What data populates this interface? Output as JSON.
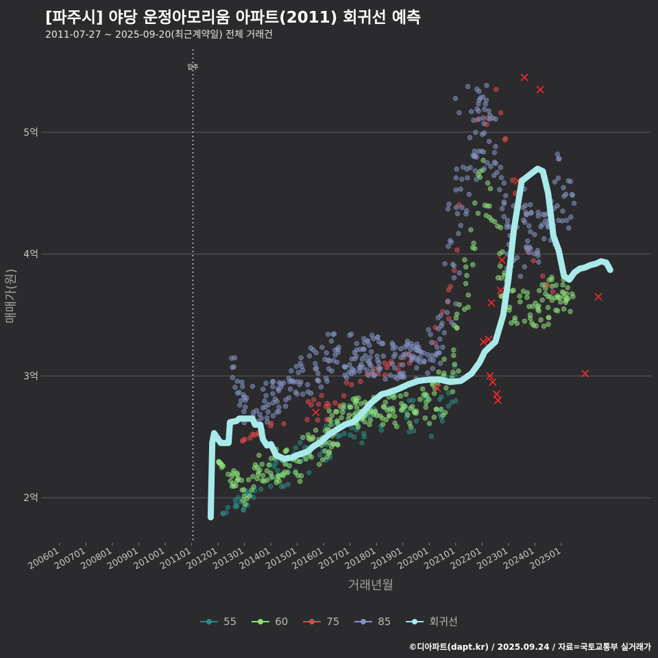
{
  "header": {
    "title": "[파주시] 야당 운정아모리움 아파트(2011) 회귀선 예측",
    "subtitle": "2011-07-27 ~ 2025-09-20(최근계약일) 전체 거래건"
  },
  "footer": {
    "credit": "©디아파트(dapt.kr) / 2025.09.24 / 자료=국토교통부 실거래가"
  },
  "colors": {
    "background": "#2b2b2d",
    "grid": "#5c5c5e",
    "s55": "#2a8a84",
    "s60": "#8ee07a",
    "s75": "#e0484e",
    "s85": "#8494c2",
    "regression": "#a8eaea",
    "cancel": "#ff2a2a"
  },
  "chart_data": {
    "type": "scatter",
    "title": "[파주시] 야당 운정아모리움 아파트(2011) 회귀선 예측",
    "xlabel": "거래년월",
    "ylabel": "매매가(원)",
    "x_tick_labels": [
      "200601",
      "200701",
      "200801",
      "200901",
      "201001",
      "201101",
      "201201",
      "201301",
      "201401",
      "201501",
      "201601",
      "201701",
      "201801",
      "201901",
      "202001",
      "202101",
      "202201",
      "202301",
      "202401",
      "202501"
    ],
    "x_range": [
      2005.3,
      2028.4
    ],
    "y_ticks": [
      2,
      3,
      4,
      5
    ],
    "y_tick_labels": [
      "2억",
      "3억",
      "4억",
      "5억"
    ],
    "y_range": [
      1.63,
      5.68
    ],
    "y_unit": "억원",
    "annotation": {
      "label": "입주",
      "x": 2011.05
    },
    "legend": [
      "55",
      "60",
      "75",
      "85",
      "회귀선"
    ],
    "series": [
      {
        "name": "55",
        "band": [
          [
            2012.0,
            1.85,
            1.85
          ],
          [
            2013.0,
            1.9,
            2.05
          ],
          [
            2013.5,
            1.95,
            2.1
          ],
          [
            2014.0,
            2.0,
            2.3
          ],
          [
            2014.5,
            2.05,
            2.35
          ],
          [
            2015.0,
            2.1,
            2.45
          ],
          [
            2015.5,
            2.2,
            2.55
          ],
          [
            2016.0,
            2.3,
            2.65
          ],
          [
            2016.5,
            2.35,
            2.75
          ],
          [
            2017.0,
            2.4,
            2.8
          ],
          [
            2017.5,
            2.45,
            2.8
          ],
          [
            2018.0,
            2.5,
            2.85
          ],
          [
            2018.5,
            2.5,
            2.85
          ],
          [
            2019.0,
            2.5,
            2.85
          ],
          [
            2019.5,
            2.45,
            2.8
          ],
          [
            2020.0,
            2.45,
            2.85
          ],
          [
            2020.5,
            2.6,
            3.0
          ],
          [
            2021.0,
            2.7,
            3.15
          ]
        ]
      },
      {
        "name": "60",
        "band": [
          [
            2012.0,
            2.3,
            2.3
          ],
          [
            2013.0,
            1.9,
            2.2
          ],
          [
            2013.5,
            2.1,
            2.35
          ],
          [
            2014.0,
            2.1,
            2.4
          ],
          [
            2014.5,
            2.15,
            2.4
          ],
          [
            2015.0,
            2.1,
            2.5
          ],
          [
            2015.5,
            2.2,
            2.6
          ],
          [
            2016.0,
            2.3,
            2.7
          ],
          [
            2016.5,
            2.4,
            2.75
          ],
          [
            2017.0,
            2.55,
            2.8
          ],
          [
            2017.5,
            2.6,
            2.85
          ],
          [
            2018.0,
            2.6,
            2.85
          ],
          [
            2018.5,
            2.6,
            2.85
          ],
          [
            2019.0,
            2.55,
            2.85
          ],
          [
            2019.5,
            2.6,
            2.85
          ],
          [
            2020.0,
            2.6,
            2.95
          ],
          [
            2020.5,
            2.65,
            3.1
          ],
          [
            2021.0,
            2.85,
            3.5
          ],
          [
            2021.5,
            3.6,
            4.3
          ],
          [
            2022.0,
            4.5,
            4.8
          ],
          [
            2022.5,
            3.8,
            4.5
          ],
          [
            2023.0,
            3.4,
            3.8
          ],
          [
            2023.5,
            3.4,
            3.7
          ],
          [
            2024.0,
            3.4,
            3.7
          ],
          [
            2024.5,
            3.4,
            3.8
          ],
          [
            2025.0,
            3.55,
            3.85
          ],
          [
            2025.5,
            3.5,
            3.7
          ]
        ]
      },
      {
        "name": "75",
        "band": [
          [
            2012.8,
            2.45,
            2.45
          ],
          [
            2014.5,
            2.6,
            2.7
          ],
          [
            2015.0,
            2.65,
            2.75
          ],
          [
            2016.0,
            2.6,
            2.85
          ],
          [
            2016.5,
            2.6,
            2.9
          ],
          [
            2017.0,
            2.9,
            3.0
          ],
          [
            2018.0,
            3.0,
            3.1
          ],
          [
            2019.0,
            3.0,
            3.15
          ],
          [
            2020.0,
            3.2,
            3.3
          ],
          [
            2020.5,
            3.3,
            3.7
          ],
          [
            2021.0,
            3.6,
            4.1
          ],
          [
            2021.3,
            4.6,
            5.1
          ],
          [
            2022.0,
            4.9,
            5.45
          ],
          [
            2022.5,
            5.3,
            5.4
          ],
          [
            2023.7,
            4.0,
            4.05
          ],
          [
            2024.7,
            3.6,
            3.7
          ]
        ]
      },
      {
        "name": "85",
        "band": [
          [
            2012.5,
            3.0,
            3.25
          ],
          [
            2013.0,
            2.6,
            2.95
          ],
          [
            2013.5,
            2.6,
            2.95
          ],
          [
            2014.0,
            2.6,
            2.95
          ],
          [
            2014.5,
            2.7,
            3.0
          ],
          [
            2015.0,
            2.75,
            3.1
          ],
          [
            2015.5,
            2.85,
            3.3
          ],
          [
            2016.0,
            2.9,
            3.35
          ],
          [
            2016.5,
            2.95,
            3.35
          ],
          [
            2017.0,
            3.0,
            3.35
          ],
          [
            2017.5,
            3.0,
            3.35
          ],
          [
            2018.0,
            3.0,
            3.35
          ],
          [
            2018.5,
            2.95,
            3.3
          ],
          [
            2019.0,
            2.95,
            3.3
          ],
          [
            2019.5,
            2.95,
            3.3
          ],
          [
            2020.0,
            3.0,
            3.4
          ],
          [
            2020.5,
            3.1,
            3.7
          ],
          [
            2021.0,
            3.5,
            5.4
          ],
          [
            2021.5,
            4.4,
            5.55
          ],
          [
            2022.0,
            4.7,
            5.5
          ],
          [
            2022.5,
            4.6,
            5.2
          ],
          [
            2023.0,
            3.7,
            4.3
          ],
          [
            2023.5,
            3.8,
            4.6
          ],
          [
            2024.0,
            3.9,
            4.3
          ],
          [
            2024.5,
            4.0,
            4.5
          ],
          [
            2025.0,
            4.1,
            4.95
          ],
          [
            2025.5,
            4.2,
            4.5
          ]
        ]
      },
      {
        "name": "회귀선",
        "points": [
          [
            2011.72,
            1.84
          ],
          [
            2011.78,
            2.45
          ],
          [
            2011.85,
            2.53
          ],
          [
            2012.1,
            2.45
          ],
          [
            2012.4,
            2.45
          ],
          [
            2012.45,
            2.62
          ],
          [
            2012.7,
            2.63
          ],
          [
            2012.8,
            2.65
          ],
          [
            2013.3,
            2.65
          ],
          [
            2013.4,
            2.6
          ],
          [
            2013.6,
            2.6
          ],
          [
            2013.7,
            2.48
          ],
          [
            2013.85,
            2.43
          ],
          [
            2014.0,
            2.44
          ],
          [
            2014.2,
            2.35
          ],
          [
            2014.5,
            2.32
          ],
          [
            2014.8,
            2.33
          ],
          [
            2015.0,
            2.35
          ],
          [
            2015.4,
            2.38
          ],
          [
            2015.6,
            2.42
          ],
          [
            2015.9,
            2.46
          ],
          [
            2016.2,
            2.52
          ],
          [
            2016.5,
            2.56
          ],
          [
            2016.8,
            2.6
          ],
          [
            2017.1,
            2.62
          ],
          [
            2017.4,
            2.68
          ],
          [
            2017.8,
            2.78
          ],
          [
            2018.2,
            2.85
          ],
          [
            2018.4,
            2.86
          ],
          [
            2018.8,
            2.89
          ],
          [
            2019.2,
            2.93
          ],
          [
            2019.6,
            2.96
          ],
          [
            2020.0,
            2.97
          ],
          [
            2020.4,
            2.97
          ],
          [
            2020.8,
            2.95
          ],
          [
            2021.2,
            2.96
          ],
          [
            2021.6,
            3.02
          ],
          [
            2021.9,
            3.11
          ],
          [
            2022.1,
            3.2
          ],
          [
            2022.5,
            3.28
          ],
          [
            2022.8,
            3.5
          ],
          [
            2023.0,
            3.8
          ],
          [
            2023.2,
            4.2
          ],
          [
            2023.5,
            4.6
          ],
          [
            2023.8,
            4.65
          ],
          [
            2024.1,
            4.7
          ],
          [
            2024.3,
            4.68
          ],
          [
            2024.5,
            4.5
          ],
          [
            2024.7,
            4.15
          ],
          [
            2024.9,
            4.03
          ],
          [
            2025.1,
            3.82
          ],
          [
            2025.3,
            3.79
          ],
          [
            2025.5,
            3.85
          ],
          [
            2025.7,
            3.88
          ],
          [
            2025.9,
            3.89
          ],
          [
            2026.1,
            3.91
          ],
          [
            2026.3,
            3.92
          ],
          [
            2026.5,
            3.94
          ],
          [
            2026.7,
            3.93
          ],
          [
            2026.85,
            3.87
          ]
        ]
      }
    ],
    "cancelled_marks": [
      [
        2015.7,
        2.7
      ],
      [
        2020.3,
        2.9
      ],
      [
        2022.05,
        3.28
      ],
      [
        2022.25,
        3.3
      ],
      [
        2022.3,
        3.0
      ],
      [
        2022.4,
        2.95
      ],
      [
        2022.55,
        2.85
      ],
      [
        2022.6,
        2.8
      ],
      [
        2022.35,
        3.6
      ],
      [
        2022.7,
        3.7
      ],
      [
        2022.75,
        3.95
      ],
      [
        2023.35,
        4.6
      ],
      [
        2023.6,
        5.45
      ],
      [
        2024.2,
        5.35
      ],
      [
        2025.9,
        3.02
      ],
      [
        2026.4,
        3.65
      ]
    ]
  }
}
